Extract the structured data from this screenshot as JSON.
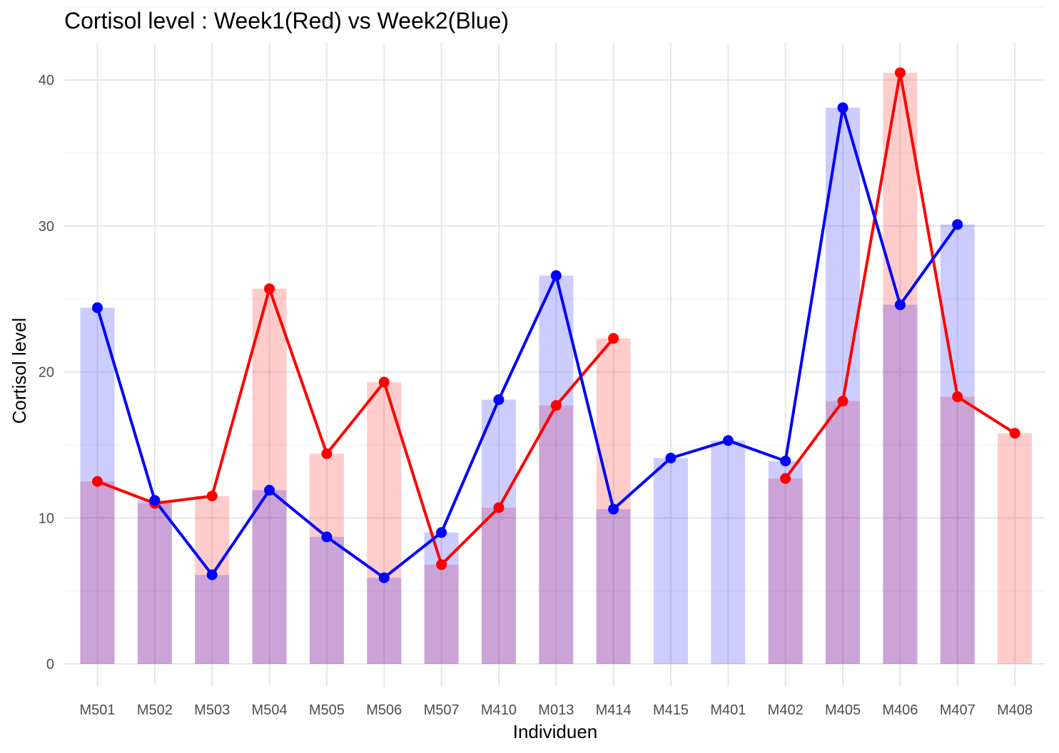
{
  "chart_data": {
    "type": "bar",
    "title": "Cortisol level : Week1(Red) vs Week2(Blue)",
    "xlabel": "Individuen",
    "ylabel": "Cortisol level",
    "ylim": [
      0,
      40
    ],
    "yticks": [
      0,
      10,
      20,
      30,
      40
    ],
    "grid": true,
    "legend": "none",
    "categories": [
      "M501",
      "M502",
      "M503",
      "M504",
      "M505",
      "M506",
      "M507",
      "M410",
      "M013",
      "M414",
      "M415",
      "M401",
      "M402",
      "M405",
      "M406",
      "M407",
      "M408"
    ],
    "series": [
      {
        "key": "week1",
        "color": "#ff0000",
        "bar_color": "#ff0000",
        "values": [
          12.5,
          11.0,
          11.5,
          25.7,
          14.4,
          19.3,
          6.8,
          10.7,
          17.7,
          22.3,
          null,
          null,
          12.7,
          18.0,
          40.5,
          18.3,
          15.8
        ]
      },
      {
        "key": "week2",
        "color": "#0000ff",
        "bar_color": "#0000ff",
        "values": [
          24.4,
          11.2,
          6.1,
          11.9,
          8.7,
          5.9,
          9.0,
          18.1,
          26.6,
          10.6,
          14.1,
          15.3,
          13.9,
          38.1,
          24.6,
          30.1,
          null
        ]
      }
    ]
  }
}
